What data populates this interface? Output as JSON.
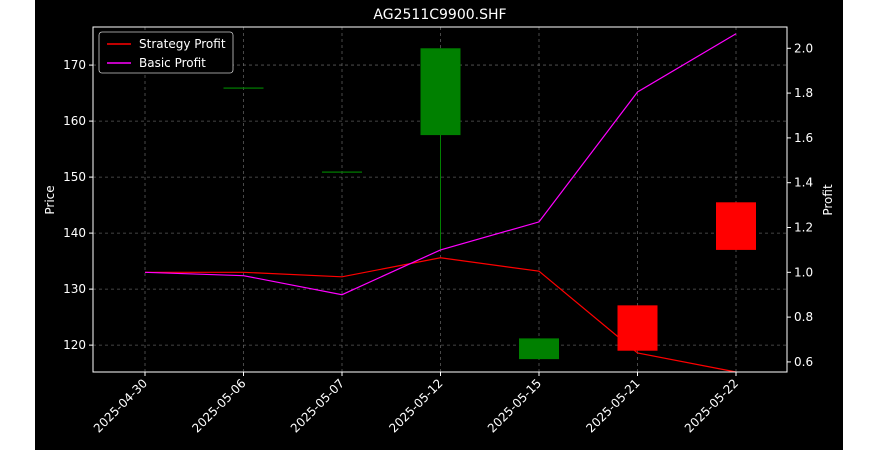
{
  "chart_data": {
    "type": "candlestick",
    "title": "AG2511C9900.SHF",
    "xlabel": "",
    "ylabel": "Price",
    "y2label": "Profit",
    "categories": [
      "2025-04-30",
      "2025-05-06",
      "2025-05-07",
      "2025-05-12",
      "2025-05-15",
      "2025-05-21",
      "2025-05-22"
    ],
    "ylim": [
      115.2,
      176.8
    ],
    "y2lim": [
      0.555,
      2.095
    ],
    "yticks": [
      120,
      130,
      140,
      150,
      160,
      170
    ],
    "y2ticks": [
      0.6,
      0.8,
      1.0,
      1.2,
      1.4,
      1.6,
      1.8,
      2.0
    ],
    "grid": true,
    "legend_position": "top-left",
    "candles": [
      {
        "date": "2025-04-30",
        "open": null,
        "high": null,
        "low": null,
        "close": null
      },
      {
        "date": "2025-05-06",
        "open": 166.0,
        "high": 166.0,
        "low": 166.0,
        "close": 166.0
      },
      {
        "date": "2025-05-07",
        "open": 151.0,
        "high": 151.0,
        "low": 151.0,
        "close": 151.0
      },
      {
        "date": "2025-05-12",
        "open": 157.5,
        "high": 173.0,
        "low": 137.0,
        "close": 173.0
      },
      {
        "date": "2025-05-15",
        "open": 117.5,
        "high": 121.2,
        "low": 117.5,
        "close": 121.2
      },
      {
        "date": "2025-05-21",
        "open": 127.1,
        "high": 127.1,
        "low": 119.0,
        "close": 119.0
      },
      {
        "date": "2025-05-22",
        "open": 145.5,
        "high": 145.5,
        "low": 137.0,
        "close": 137.0
      }
    ],
    "series": [
      {
        "name": "Strategy Profit",
        "color": "#ff0000",
        "axis": "right",
        "values": [
          1.0,
          1.0,
          0.98,
          1.065,
          1.005,
          0.64,
          0.555
        ]
      },
      {
        "name": "Basic Profit",
        "color": "#ff00ff",
        "axis": "right",
        "values": [
          1.0,
          0.985,
          0.9,
          1.1,
          1.225,
          1.805,
          2.065
        ]
      }
    ],
    "colors": {
      "up": "#008000",
      "down": "#ff0000",
      "background": "#000000",
      "text": "#ffffff",
      "grid": "#808080"
    }
  }
}
